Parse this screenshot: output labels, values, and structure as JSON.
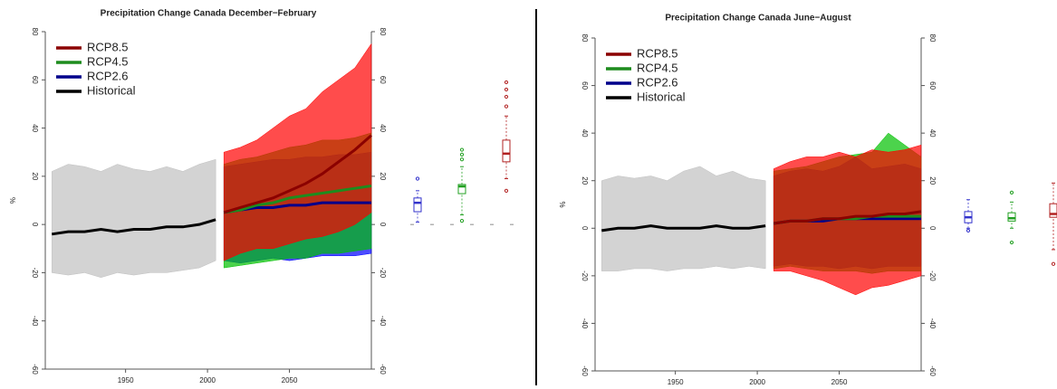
{
  "chart_data": [
    {
      "type": "line",
      "title": "Precipitation Change Canada December−February",
      "ylabel": "%",
      "xlim": [
        1901,
        2100
      ],
      "xticks": [
        1950,
        2000,
        2050
      ],
      "ylim": [
        -60,
        80
      ],
      "yticks": [
        -60,
        -40,
        -20,
        0,
        20,
        40,
        60,
        80
      ],
      "series": [
        {
          "name": "RCP8.5",
          "color": "#8b0000",
          "band_color": "#ff0000",
          "box_color": "#b22222",
          "x": [
            2010,
            2020,
            2030,
            2040,
            2050,
            2060,
            2070,
            2080,
            2090,
            2100
          ],
          "values": [
            5,
            7,
            9,
            11,
            14,
            17,
            21,
            26,
            31,
            37
          ],
          "low": [
            -15,
            -12,
            -10,
            -10,
            -8,
            -6,
            -5,
            -3,
            0,
            5
          ],
          "high": [
            30,
            32,
            35,
            40,
            45,
            48,
            55,
            60,
            65,
            75
          ],
          "box": {
            "whislo": 19,
            "q1": 26,
            "med": 29.4,
            "q3": 35,
            "whishi": 45,
            "outliers": [
              14,
              49,
              53,
              56,
              59
            ]
          }
        },
        {
          "name": "RCP4.5",
          "color": "#1e8c1e",
          "band_color": "#00c000",
          "box_color": "#22a022",
          "x": [
            2010,
            2020,
            2030,
            2040,
            2050,
            2060,
            2070,
            2080,
            2090,
            2100
          ],
          "values": [
            5,
            6,
            8,
            9,
            11,
            12,
            13,
            14,
            15,
            16
          ],
          "low": [
            -18,
            -17,
            -16,
            -15,
            -14,
            -14,
            -12,
            -12,
            -11,
            -10
          ],
          "high": [
            25,
            27,
            28,
            30,
            32,
            33,
            35,
            35,
            36,
            38
          ],
          "box": {
            "whislo": 4,
            "q1": 12.8,
            "med": 15.8,
            "q3": 16.6,
            "whishi": 24,
            "outliers": [
              1.5,
              27,
              29,
              31
            ]
          }
        },
        {
          "name": "RCP2.6",
          "color": "#00008b",
          "band_color": "#0000ff",
          "box_color": "#3333cc",
          "x": [
            2010,
            2020,
            2030,
            2040,
            2050,
            2060,
            2070,
            2080,
            2090,
            2100
          ],
          "values": [
            5,
            6,
            7,
            7,
            8,
            8,
            9,
            9,
            9,
            9
          ],
          "low": [
            -15,
            -16,
            -15,
            -14,
            -15,
            -14,
            -13,
            -13,
            -13,
            -12
          ],
          "high": [
            24,
            25,
            26,
            27,
            27,
            28,
            28,
            29,
            29,
            30
          ],
          "box": {
            "whislo": 1,
            "q1": 5.3,
            "med": 9,
            "q3": 11,
            "whishi": 14,
            "outliers": [
              19
            ]
          }
        },
        {
          "name": "Historical",
          "color": "#000000",
          "band_color": "#c0c0c0",
          "x": [
            1905,
            1915,
            1925,
            1935,
            1945,
            1955,
            1965,
            1975,
            1985,
            1995,
            2005
          ],
          "values": [
            -4,
            -3,
            -3,
            -2,
            -3,
            -2,
            -2,
            -1,
            -1,
            0,
            2
          ],
          "low": [
            -20,
            -21,
            -20,
            -22,
            -20,
            -21,
            -20,
            -20,
            -19,
            -18,
            -15
          ],
          "high": [
            22,
            25,
            24,
            22,
            25,
            23,
            22,
            24,
            22,
            25,
            27
          ]
        }
      ]
    },
    {
      "type": "line",
      "title": "Precipitation Change Canada June−August",
      "ylabel": "%",
      "xlim": [
        1901,
        2100
      ],
      "xticks": [
        1950,
        2000,
        2050
      ],
      "ylim": [
        -60,
        80
      ],
      "yticks": [
        -60,
        -40,
        -20,
        0,
        20,
        40,
        60,
        80
      ],
      "series": [
        {
          "name": "RCP8.5",
          "color": "#8b0000",
          "band_color": "#ff0000",
          "box_color": "#b22222",
          "x": [
            2010,
            2020,
            2030,
            2040,
            2050,
            2060,
            2070,
            2080,
            2090,
            2100
          ],
          "values": [
            2,
            3,
            3,
            4,
            4,
            5,
            5,
            6,
            6,
            7
          ],
          "low": [
            -18,
            -18,
            -20,
            -22,
            -25,
            -28,
            -25,
            -24,
            -22,
            -20
          ],
          "high": [
            25,
            28,
            30,
            30,
            32,
            30,
            33,
            32,
            33,
            35
          ],
          "box": {
            "whislo": -9,
            "q1": 4.6,
            "med": 6,
            "q3": 10.3,
            "whishi": 19,
            "outliers": [
              -15
            ]
          }
        },
        {
          "name": "RCP4.5",
          "color": "#1e8c1e",
          "band_color": "#00c000",
          "box_color": "#22a022",
          "x": [
            2010,
            2020,
            2030,
            2040,
            2050,
            2060,
            2070,
            2080,
            2090,
            2100
          ],
          "values": [
            2,
            3,
            3,
            4,
            4,
            4,
            5,
            5,
            5,
            5
          ],
          "low": [
            -17,
            -16,
            -17,
            -18,
            -18,
            -18,
            -19,
            -18,
            -18,
            -18
          ],
          "high": [
            24,
            25,
            26,
            28,
            30,
            31,
            32,
            40,
            35,
            30
          ],
          "box": {
            "whislo": 0,
            "q1": 3,
            "med": 4.2,
            "q3": 6.5,
            "whishi": 11,
            "outliers": [
              -6,
              15
            ]
          }
        },
        {
          "name": "RCP2.6",
          "color": "#00008b",
          "band_color": "#0000ff",
          "box_color": "#3333cc",
          "x": [
            2010,
            2020,
            2030,
            2040,
            2050,
            2060,
            2070,
            2080,
            2090,
            2100
          ],
          "values": [
            2,
            3,
            3,
            3,
            4,
            4,
            4,
            4,
            4,
            4
          ],
          "low": [
            -16,
            -15,
            -16,
            -16,
            -17,
            -16,
            -17,
            -16,
            -16,
            -16
          ],
          "high": [
            22,
            24,
            25,
            24,
            26,
            30,
            25,
            26,
            27,
            25
          ],
          "box": {
            "whislo": 0,
            "q1": 2.3,
            "med": 4.6,
            "q3": 7,
            "whishi": 12,
            "outliers": [
              -1
            ]
          }
        },
        {
          "name": "Historical",
          "color": "#000000",
          "band_color": "#c0c0c0",
          "x": [
            1905,
            1915,
            1925,
            1935,
            1945,
            1955,
            1965,
            1975,
            1985,
            1995,
            2005
          ],
          "values": [
            -1,
            0,
            0,
            1,
            0,
            0,
            0,
            1,
            0,
            0,
            1
          ],
          "low": [
            -18,
            -18,
            -17,
            -17,
            -18,
            -17,
            -17,
            -16,
            -17,
            -16,
            -17
          ],
          "high": [
            20,
            22,
            21,
            22,
            20,
            24,
            26,
            22,
            24,
            21,
            20
          ]
        }
      ]
    }
  ]
}
